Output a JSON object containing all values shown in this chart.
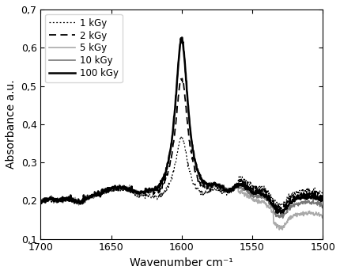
{
  "xlabel": "Wavenumber cm⁻¹",
  "ylabel": "Absorbance a.u.",
  "xlim": [
    1700,
    1500
  ],
  "ylim": [
    0.1,
    0.7
  ],
  "yticks": [
    0.1,
    0.2,
    0.3,
    0.4,
    0.5,
    0.6,
    0.7
  ],
  "ytick_labels": [
    "0,1",
    "0,2",
    "0,3",
    "0,4",
    "0,5",
    "0,6",
    "0,7"
  ],
  "xticks": [
    1700,
    1650,
    1600,
    1550,
    1500
  ],
  "legend_labels": [
    "1 kGy",
    "2 kGy",
    "5 kGy",
    "10 kGy",
    "100 kGy"
  ],
  "line_colors": [
    "#000000",
    "#000000",
    "#aaaaaa",
    "#777777",
    "#000000"
  ],
  "line_styles": [
    "dotted",
    "dashed",
    "solid",
    "solid",
    "solid"
  ],
  "line_widths": [
    0.9,
    1.3,
    1.2,
    1.2,
    1.8
  ]
}
